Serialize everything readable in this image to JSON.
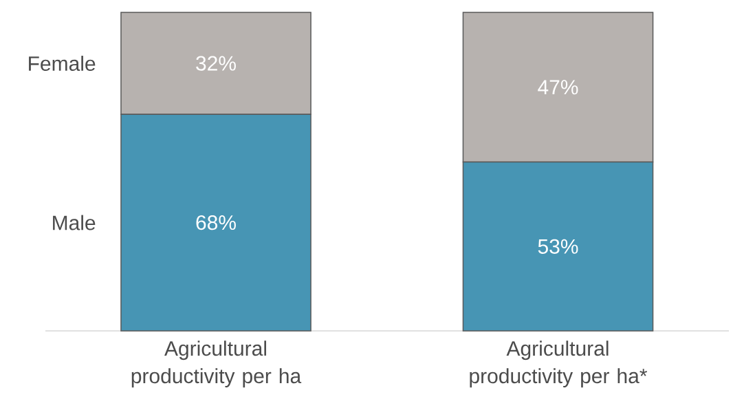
{
  "chart_data": {
    "type": "bar",
    "stacked": true,
    "categories": [
      "Agricultural productivity per ha",
      "Agricultural productivity per ha*"
    ],
    "series": [
      {
        "name": "Male",
        "color": "#4795b4",
        "values": [
          68,
          53
        ],
        "value_labels": [
          "68%",
          "53%"
        ]
      },
      {
        "name": "Female",
        "color": "#b7b2af",
        "values": [
          32,
          47
        ],
        "value_labels": [
          "32%",
          "47%"
        ]
      }
    ]
  }
}
